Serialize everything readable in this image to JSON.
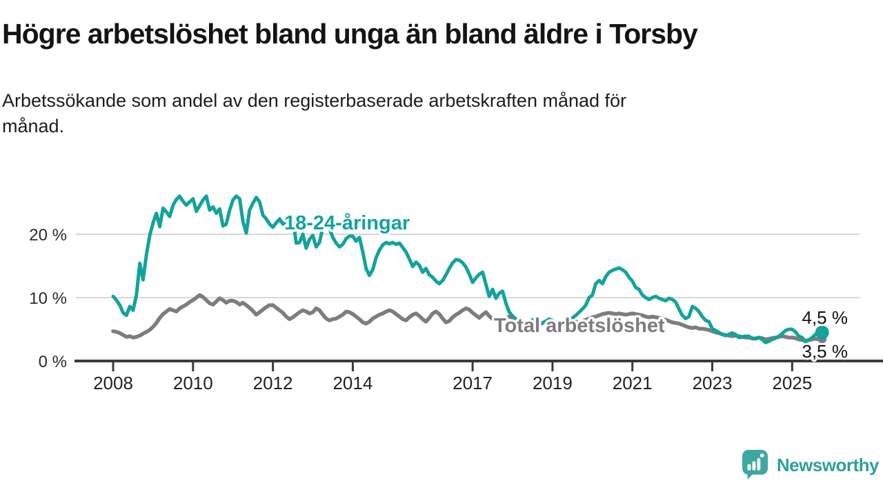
{
  "header": {
    "title": "Högre arbetslöshet bland unga än bland äldre i Torsby",
    "subtitle_lines": [
      "Arbetssökande som andel av den registerbaserade arbetskraften månad för",
      "månad."
    ]
  },
  "chart_data": {
    "type": "line",
    "title": "Högre arbetslöshet bland unga än bland äldre i Torsby",
    "subtitle": "Arbetssökande som andel av den registerbaserade arbetskraften månad för månad.",
    "unit": "%",
    "grid": "horizontal",
    "legend_position": "inline-labels",
    "x_range": [
      "2008-01",
      "2025-10"
    ],
    "ylim": [
      0,
      28
    ],
    "y_ticks": [
      {
        "value": 0,
        "label": "0 %"
      },
      {
        "value": 10,
        "label": "10 %"
      },
      {
        "value": 20,
        "label": "20 %"
      }
    ],
    "x_ticks": [
      {
        "year": 2008,
        "label": "2008"
      },
      {
        "year": 2010,
        "label": "2010"
      },
      {
        "year": 2012,
        "label": "2012"
      },
      {
        "year": 2014,
        "label": "2014"
      },
      {
        "year": 2017,
        "label": "2017"
      },
      {
        "year": 2019,
        "label": "2019"
      },
      {
        "year": 2021,
        "label": "2021"
      },
      {
        "year": 2023,
        "label": "2023"
      },
      {
        "year": 2025,
        "label": "2025"
      }
    ],
    "axis_color": "#3a3a3a",
    "gridline_color": "#d8d8d8",
    "series": [
      {
        "name": "18-24-åringar",
        "color": "#12a39c",
        "end_label": "4,5 %",
        "end_value": 4.5,
        "end_dot": true,
        "values": [
          10.2,
          9.6,
          8.8,
          7.6,
          7.2,
          8.6,
          8.0,
          10.4,
          15.4,
          12.8,
          16.8,
          19.8,
          21.8,
          23.3,
          21.2,
          24.1,
          23.5,
          22.8,
          24.6,
          25.5,
          26.0,
          25.2,
          24.6,
          25.1,
          25.6,
          23.6,
          24.5,
          25.4,
          26.0,
          23.8,
          24.3,
          23.3,
          24.0,
          21.3,
          21.6,
          23.8,
          25.4,
          26.0,
          25.6,
          22.0,
          20.2,
          23.8,
          24.9,
          25.8,
          25.1,
          23.0,
          22.4,
          21.6,
          21.1,
          21.8,
          22.4,
          21.6,
          22.2,
          21.3,
          22.5,
          18.6,
          18.7,
          20.0,
          17.8,
          19.2,
          19.8,
          18.0,
          18.7,
          21.1,
          22.3,
          20.9,
          19.5,
          18.6,
          18.0,
          18.4,
          19.3,
          19.7,
          19.7,
          18.9,
          19.5,
          17.2,
          14.6,
          13.5,
          14.4,
          16.3,
          17.5,
          18.3,
          18.7,
          18.5,
          18.7,
          18.4,
          18.6,
          17.9,
          17.2,
          16.1,
          14.9,
          15.6,
          15.1,
          14.0,
          14.6,
          13.6,
          13.2,
          12.6,
          12.2,
          12.7,
          13.6,
          14.6,
          15.5,
          16.0,
          15.9,
          15.5,
          14.8,
          13.7,
          12.4,
          13.1,
          13.7,
          14.0,
          12.1,
          10.2,
          11.3,
          9.9,
          10.7,
          11.0,
          9.1,
          7.7,
          7.1,
          6.6,
          6.3,
          5.9,
          5.6,
          6.1,
          6.5,
          6.0,
          5.7,
          6.0,
          6.3,
          6.6,
          6.4,
          6.1,
          5.9,
          6.2,
          6.0,
          6.4,
          6.8,
          7.2,
          7.7,
          8.2,
          8.8,
          10.0,
          10.4,
          12.2,
          12.7,
          12.2,
          13.3,
          14.0,
          14.3,
          14.5,
          14.7,
          14.4,
          14.0,
          13.2,
          12.6,
          11.6,
          11.3,
          10.4,
          10.0,
          9.7,
          10.0,
          10.2,
          9.9,
          9.7,
          9.5,
          9.9,
          9.7,
          9.3,
          8.2,
          7.2,
          6.7,
          7.0,
          8.6,
          8.3,
          7.8,
          7.0,
          6.4,
          6.2,
          5.1,
          4.8,
          4.5,
          4.2,
          4.0,
          4.2,
          4.4,
          4.2,
          3.7,
          3.8,
          3.9,
          3.9,
          3.5,
          3.6,
          3.7,
          3.4,
          2.9,
          3.1,
          3.4,
          3.6,
          3.9,
          4.3,
          4.8,
          5.0,
          5.0,
          4.6,
          3.9,
          3.7,
          3.0,
          3.3,
          3.7,
          4.2,
          4.6,
          4.5
        ]
      },
      {
        "name": "Total arbetslöshet",
        "color": "#7d7d81",
        "end_label": "3,5 %",
        "end_value": 3.5,
        "end_dot": true,
        "values": [
          4.7,
          4.6,
          4.4,
          4.1,
          3.8,
          3.9,
          3.7,
          3.8,
          4.0,
          4.3,
          4.6,
          4.9,
          5.4,
          6.0,
          6.8,
          7.4,
          7.8,
          8.2,
          8.0,
          7.8,
          8.3,
          8.6,
          8.9,
          9.3,
          9.6,
          10.0,
          10.4,
          10.1,
          9.6,
          9.1,
          8.9,
          9.4,
          9.9,
          9.6,
          9.2,
          9.5,
          9.5,
          9.3,
          8.9,
          9.2,
          8.8,
          8.4,
          7.9,
          7.3,
          7.7,
          8.1,
          8.5,
          8.8,
          8.8,
          8.4,
          8.0,
          7.6,
          7.0,
          6.6,
          6.9,
          7.3,
          7.7,
          8.0,
          7.8,
          7.5,
          7.7,
          8.3,
          8.0,
          7.3,
          6.7,
          6.4,
          6.6,
          6.7,
          7.0,
          7.3,
          7.8,
          7.7,
          7.4,
          7.0,
          6.6,
          6.1,
          5.9,
          6.2,
          6.7,
          7.0,
          7.3,
          7.5,
          7.8,
          8.0,
          7.8,
          7.4,
          7.0,
          6.6,
          6.4,
          6.9,
          7.3,
          7.5,
          7.1,
          6.6,
          6.2,
          6.8,
          7.5,
          7.8,
          7.4,
          6.7,
          6.1,
          6.3,
          6.9,
          7.3,
          7.6,
          8.0,
          8.3,
          8.1,
          7.6,
          7.2,
          6.8,
          7.3,
          7.7,
          7.1,
          6.6,
          6.4,
          5.9,
          6.3,
          6.8,
          7.0,
          6.8,
          6.5,
          6.2,
          5.9,
          5.7,
          5.9,
          6.2,
          6.0,
          5.8,
          6.0,
          6.2,
          6.4,
          6.3,
          6.1,
          5.9,
          5.8,
          5.9,
          6.1,
          6.3,
          6.2,
          6.1,
          6.3,
          6.5,
          6.7,
          6.9,
          7.0,
          7.2,
          7.4,
          7.5,
          7.6,
          7.5,
          7.4,
          7.5,
          7.4,
          7.3,
          7.4,
          7.5,
          7.4,
          7.3,
          7.2,
          7.0,
          6.9,
          7.0,
          6.9,
          6.8,
          6.7,
          6.5,
          6.3,
          6.1,
          6.0,
          5.9,
          5.7,
          5.5,
          5.3,
          5.2,
          5.3,
          5.1,
          5.1,
          5.0,
          4.9,
          4.7,
          4.5,
          4.4,
          4.2,
          4.1,
          4.0,
          3.9,
          4.0,
          3.9,
          3.8,
          3.7,
          3.7,
          3.6,
          3.5,
          3.7,
          3.6,
          3.4,
          3.5,
          3.6,
          3.7,
          3.8,
          3.9,
          3.8,
          3.7,
          3.7,
          3.6,
          3.4,
          3.3,
          3.2,
          3.3,
          3.4,
          3.5,
          3.4,
          3.5
        ]
      }
    ]
  },
  "branding": {
    "logo_text": "Newsworthy",
    "logo_color": "#2fa09a",
    "logo_icon": "newsworthy-speech-bubble-bar-chart-icon"
  }
}
